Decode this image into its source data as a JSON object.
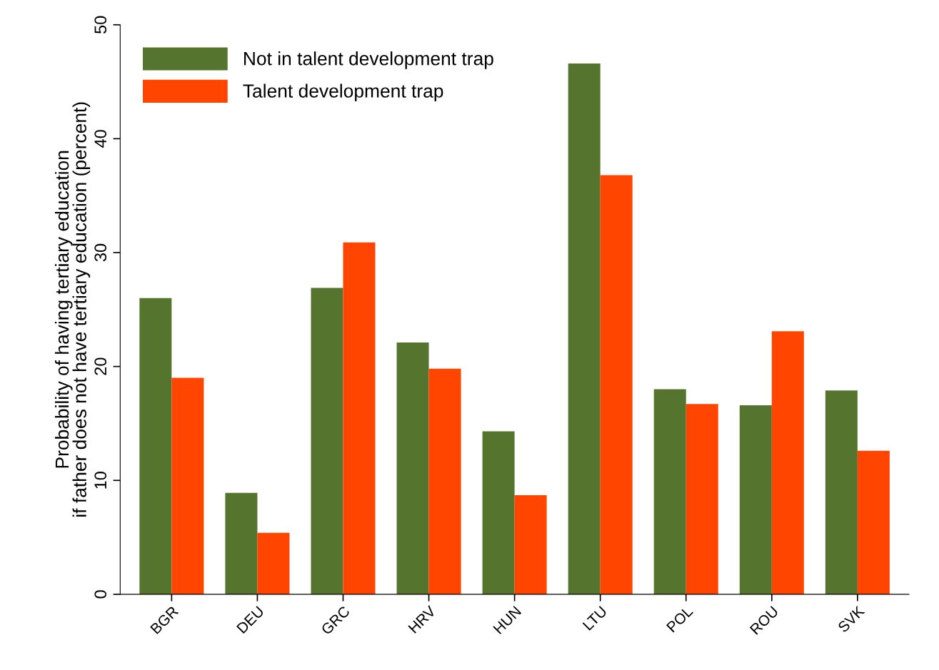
{
  "chart_data": {
    "type": "bar",
    "ylabel": "Probability of having tertiary education\nif father does not have tertiary education (percent)",
    "categories": [
      "BGR",
      "DEU",
      "GRC",
      "HRV",
      "HUN",
      "LTU",
      "POL",
      "ROU",
      "SVK"
    ],
    "series": [
      {
        "name": "Not in talent development trap",
        "color": "#55752f",
        "values": [
          26.0,
          8.9,
          26.9,
          22.1,
          14.3,
          46.6,
          18.0,
          16.6,
          17.9
        ]
      },
      {
        "name": "Talent development trap",
        "color": "#ff4500",
        "values": [
          19.0,
          5.4,
          30.9,
          19.8,
          8.7,
          36.8,
          16.7,
          23.1,
          12.6
        ]
      }
    ],
    "ylim": [
      0,
      50
    ],
    "yticks": [
      0,
      10,
      20,
      30,
      40,
      50
    ],
    "grid": false,
    "legend": "top left"
  }
}
